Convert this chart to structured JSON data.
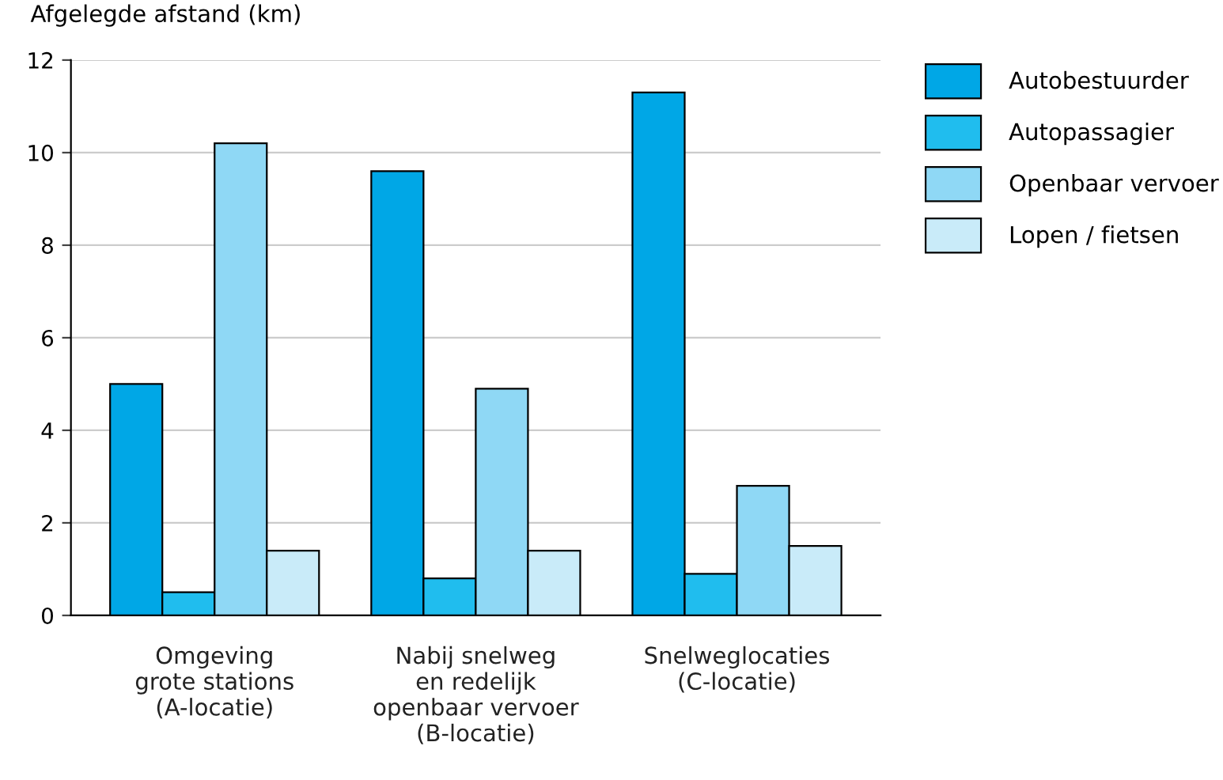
{
  "chart_data": {
    "type": "bar",
    "ylabel": "Afgelegde afstand (km)",
    "categories": [
      "Omgeving\ngrote stations\n(A-locatie)",
      "Nabij snelweg\nen redelijk\nopenbaar vervoer\n(B-locatie)",
      "Snelweglocaties\n(C-locatie)"
    ],
    "series": [
      {
        "name": "Autobestuurder",
        "color": "#00a7e6",
        "values": [
          5.0,
          9.6,
          11.3
        ]
      },
      {
        "name": "Autopassagier",
        "color": "#20bdee",
        "values": [
          0.5,
          0.8,
          0.9
        ]
      },
      {
        "name": "Openbaar vervoer",
        "color": "#8fd8f5",
        "values": [
          10.2,
          4.9,
          2.8
        ]
      },
      {
        "name": "Lopen / fietsen",
        "color": "#c9ebf9",
        "values": [
          1.4,
          1.4,
          1.5
        ]
      }
    ],
    "ylim": [
      0,
      12
    ],
    "yticks": [
      0,
      2,
      4,
      6,
      8,
      10,
      12
    ],
    "grid": "y",
    "legend": "top right"
  }
}
